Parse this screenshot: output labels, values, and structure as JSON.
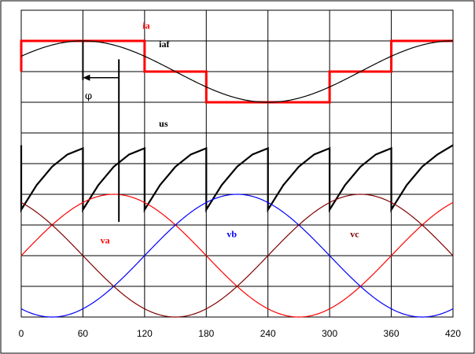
{
  "chart_data": {
    "type": "line",
    "title": "",
    "xlabel": "",
    "ylabel": "",
    "xlim": [
      0,
      420
    ],
    "ylim": [
      -10,
      0
    ],
    "x_ticks": [
      0,
      60,
      120,
      180,
      240,
      300,
      360,
      420
    ],
    "x_tick_labels": [
      "0",
      "60",
      "120",
      "180",
      "240",
      "300",
      "360",
      "420"
    ],
    "y_gridlines": [
      -9,
      -8,
      -7,
      -6,
      -5,
      -4,
      -3,
      -2,
      -1
    ],
    "grid": true,
    "legend": "none",
    "series": [
      {
        "name": "ia",
        "color": "#ff0000",
        "stroke_width": 3,
        "points": [
          [
            0,
            -2
          ],
          [
            0,
            -1
          ],
          [
            120,
            -1
          ],
          [
            120,
            -2
          ],
          [
            180,
            -2
          ],
          [
            180,
            -3
          ],
          [
            300,
            -3
          ],
          [
            300,
            -2
          ],
          [
            360,
            -2
          ],
          [
            360,
            -1
          ],
          [
            420,
            -1
          ]
        ]
      },
      {
        "name": "iaf",
        "color": "#000000",
        "stroke_width": 1.2,
        "function": "sine",
        "center": -2,
        "amplitude": 1,
        "peak_x": 60,
        "period": 360
      },
      {
        "name": "us",
        "color": "#000000",
        "stroke_width": 2.2,
        "points": [
          [
            0,
            -4.4
          ],
          [
            0,
            -6.5
          ],
          [
            15,
            -5.7
          ],
          [
            30,
            -5.1
          ],
          [
            45,
            -4.7
          ],
          [
            60,
            -4.5
          ],
          [
            60,
            -6.5
          ],
          [
            75,
            -5.7
          ],
          [
            90,
            -5.1
          ],
          [
            105,
            -4.7
          ],
          [
            120,
            -4.5
          ],
          [
            120,
            -6.5
          ],
          [
            135,
            -5.7
          ],
          [
            150,
            -5.1
          ],
          [
            165,
            -4.7
          ],
          [
            180,
            -4.5
          ],
          [
            180,
            -6.5
          ],
          [
            195,
            -5.7
          ],
          [
            210,
            -5.1
          ],
          [
            225,
            -4.7
          ],
          [
            240,
            -4.5
          ],
          [
            240,
            -6.5
          ],
          [
            255,
            -5.7
          ],
          [
            270,
            -5.1
          ],
          [
            285,
            -4.7
          ],
          [
            300,
            -4.5
          ],
          [
            300,
            -6.5
          ],
          [
            315,
            -5.7
          ],
          [
            330,
            -5.1
          ],
          [
            345,
            -4.7
          ],
          [
            360,
            -4.5
          ],
          [
            360,
            -6.5
          ],
          [
            375,
            -5.7
          ],
          [
            390,
            -5.1
          ],
          [
            405,
            -4.7
          ],
          [
            420,
            -4.4
          ]
        ]
      },
      {
        "name": "va",
        "color": "#ff0000",
        "stroke_width": 1.2,
        "function": "sine",
        "center": -8,
        "amplitude": 2,
        "peak_x": 90,
        "period": 360
      },
      {
        "name": "vb",
        "color": "#0000ff",
        "stroke_width": 1.2,
        "function": "sine",
        "center": -8,
        "amplitude": 2,
        "peak_x": 210,
        "period": 360
      },
      {
        "name": "vc",
        "color": "#800000",
        "stroke_width": 1.2,
        "function": "sine",
        "center": -8,
        "amplitude": 2,
        "peak_x": 330,
        "period": 360
      }
    ],
    "annotations": [
      {
        "text": "ia",
        "x": 118,
        "y": -0.6,
        "color": "#ff0000"
      },
      {
        "text": "iaf",
        "x": 134,
        "y": -1.2,
        "color": "#000000"
      },
      {
        "text": "us",
        "x": 134,
        "y": -3.8,
        "color": "#000000"
      },
      {
        "text": "va",
        "x": 77,
        "y": -7.6,
        "color": "#ff0000"
      },
      {
        "text": "vb",
        "x": 200,
        "y": -7.4,
        "color": "#0000ff"
      },
      {
        "text": "vc",
        "x": 320,
        "y": -7.4,
        "color": "#800000"
      },
      {
        "text": "φ",
        "x": 62,
        "y": -2.9,
        "color": "#000000"
      }
    ],
    "phase_marker": {
      "x_start": 60,
      "x_end": 95,
      "y_arrow": -2.2,
      "line_top_left": -1,
      "line_top_right": -1.6,
      "line_bottom_right": -6.9
    }
  }
}
